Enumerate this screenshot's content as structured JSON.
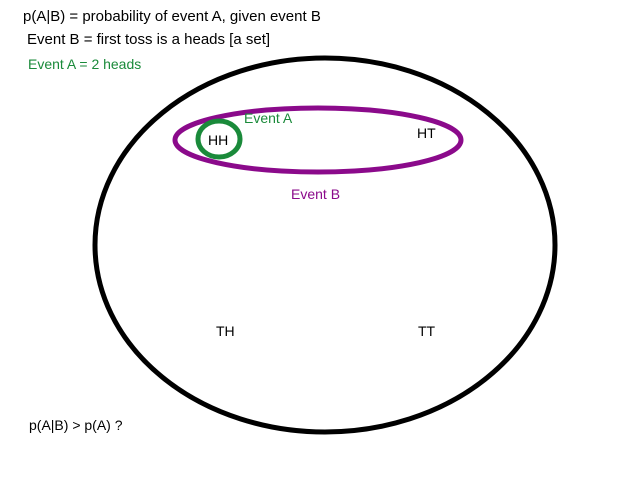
{
  "header": {
    "definition_line": "p(A|B) = probability of event A, given event B",
    "event_b_line": "Event B = first toss is a heads [a set]",
    "event_a_line": "Event A = 2 heads"
  },
  "diagram": {
    "outcomes": {
      "hh": "HH",
      "ht": "HT",
      "th": "TH",
      "tt": "TT"
    },
    "event_a_label": "Event A",
    "event_b_label": "Event B"
  },
  "footer": {
    "question": "p(A|B) > p(A) ?"
  },
  "colors": {
    "text": "#000000",
    "event_a": "#1a8a3a",
    "event_b": "#8b0a8b",
    "sample_space": "#000000"
  }
}
